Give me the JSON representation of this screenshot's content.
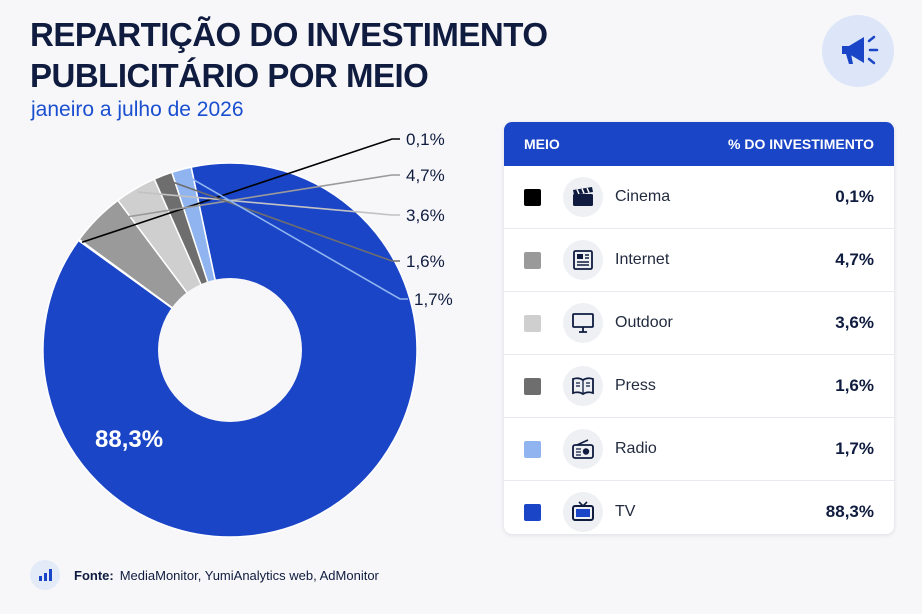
{
  "header": {
    "title_line1": "REPARTIÇÃO DO INVESTIMENTO",
    "title_line2": "PUBLICITÁRIO POR MEIO",
    "subtitle": "janeiro a julho de 2026"
  },
  "chart_data": {
    "type": "pie",
    "variant": "donut",
    "categories": [
      "TV",
      "Cinema",
      "Internet",
      "Outdoor",
      "Press",
      "Radio"
    ],
    "values": [
      88.3,
      0.1,
      4.7,
      3.6,
      1.6,
      1.7
    ],
    "labels": [
      "88,3%",
      "0,1%",
      "4,7%",
      "3,6%",
      "1,6%",
      "1,7%"
    ],
    "colors": [
      "#1b45c7",
      "#000000",
      "#9a9a9a",
      "#cfcfcf",
      "#6e6e6e",
      "#8fb4f0"
    ],
    "legend_position": "right"
  },
  "table": {
    "header_medium": "MEIO",
    "header_percent": "% DO INVESTIMENTO",
    "rows": [
      {
        "medium": "Cinema",
        "percent": "0,1%",
        "color": "#000000",
        "icon": "clapperboard-icon"
      },
      {
        "medium": "Internet",
        "percent": "4,7%",
        "color": "#9a9a9a",
        "icon": "newspaper-web-icon"
      },
      {
        "medium": "Outdoor",
        "percent": "3,6%",
        "color": "#cfcfcf",
        "icon": "billboard-icon"
      },
      {
        "medium": "Press",
        "percent": "1,6%",
        "color": "#6e6e6e",
        "icon": "open-book-icon"
      },
      {
        "medium": "Radio",
        "percent": "1,7%",
        "color": "#8fb4f0",
        "icon": "radio-icon"
      },
      {
        "medium": "TV",
        "percent": "88,3%",
        "color": "#1b45c7",
        "icon": "tv-icon"
      }
    ]
  },
  "footer": {
    "source_label": "Fonte:",
    "source_text": "MediaMonitor, YumiAnalytics web, AdMonitor"
  },
  "colors": {
    "accent": "#1b45c7",
    "title": "#0f1c3f",
    "subtitle": "#1a4fd0"
  }
}
